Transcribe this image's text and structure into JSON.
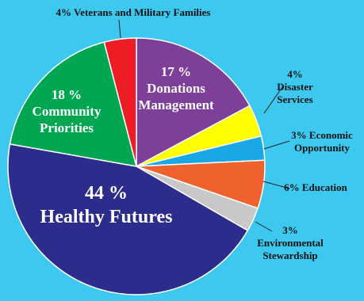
{
  "chart_data": {
    "type": "pie",
    "background": "#3dc8f0",
    "slices": [
      {
        "name": "Donations Management",
        "value": 17,
        "color": "#7d3f98",
        "label_lines": [
          "17 %",
          "Donations",
          "Management"
        ]
      },
      {
        "name": "Disaster Services",
        "value": 4,
        "color": "#ffff00",
        "label_lines": [
          "4%",
          "Disaster",
          "Services"
        ]
      },
      {
        "name": "Economic Opportunity",
        "value": 3,
        "color": "#1aa7e6",
        "label_lines": [
          "3% Economic",
          "Opportunity"
        ]
      },
      {
        "name": "Education",
        "value": 6,
        "color": "#f0622d",
        "label_lines": [
          "6% Education"
        ]
      },
      {
        "name": "Environmental Stewardship",
        "value": 3,
        "color": "#c8c8c8",
        "label_lines": [
          "3%",
          "Environmental",
          "Stewardship"
        ]
      },
      {
        "name": "Healthy Futures",
        "value": 44,
        "color": "#2c2c8c",
        "label_lines": [
          "44 %",
          "Healthy Futures"
        ]
      },
      {
        "name": "Community Priorities",
        "value": 18,
        "color": "#00a651",
        "label_lines": [
          "18 %",
          "Community",
          "Priorities"
        ]
      },
      {
        "name": "Veterans and Military Families",
        "value": 4,
        "color": "#ee1c25",
        "label_lines": [
          "4% Veterans and Military Families"
        ]
      }
    ]
  }
}
